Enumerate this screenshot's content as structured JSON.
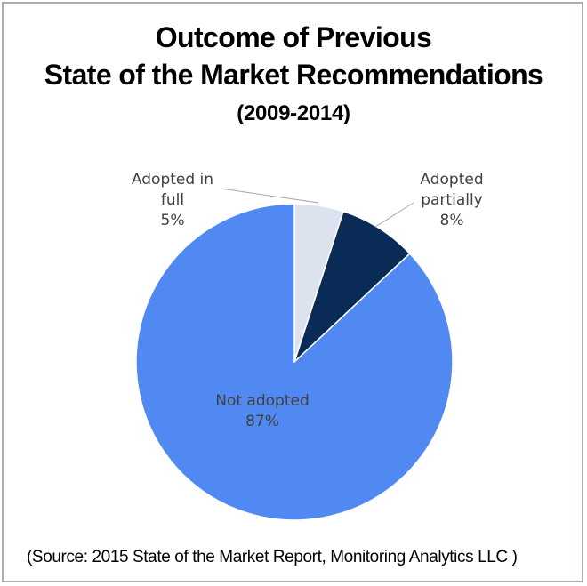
{
  "chart_data": {
    "type": "pie",
    "title": "Outcome of Previous",
    "title_line2": "State of the Market Recommendations",
    "subtitle": "(2009-2014)",
    "start_angle_deg": 0,
    "direction": "clockwise",
    "slices": [
      {
        "label": "Adopted in full",
        "label_lines": [
          "Adopted in",
          "full"
        ],
        "value": 5,
        "value_label": "5%",
        "color": "#dce3ee"
      },
      {
        "label": "Adopted partially",
        "label_lines": [
          "Adopted",
          "partially"
        ],
        "value": 8,
        "value_label": "8%",
        "color": "#0a2b56"
      },
      {
        "label": "Not adopted",
        "label_lines": [
          "Not adopted"
        ],
        "value": 87,
        "value_label": "87%",
        "color": "#5189f3"
      }
    ],
    "source": "(Source: 2015 State of the Market Report, Monitoring Analytics LLC )"
  }
}
